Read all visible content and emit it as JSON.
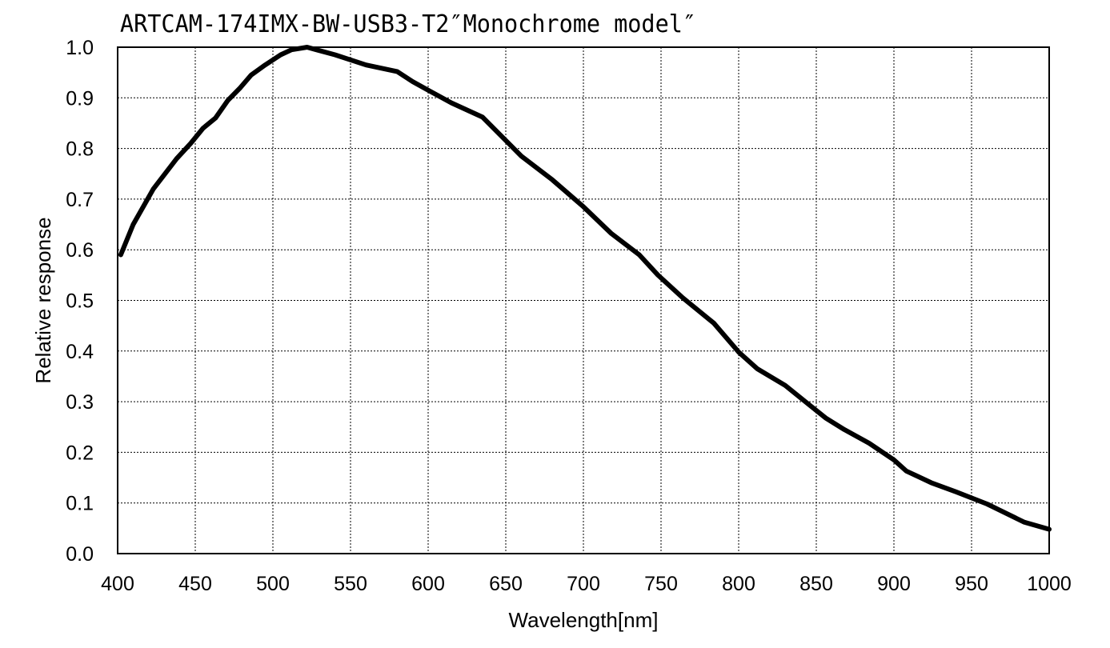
{
  "chart_data": {
    "type": "line",
    "title": "ARTCAM-174IMX-BW-USB3-T2″Monochrome model″",
    "xlabel": "Wavelength[nm]",
    "ylabel": "Relative response",
    "xlim": [
      400,
      1000
    ],
    "ylim": [
      0.0,
      1.0
    ],
    "xticks": [
      400,
      450,
      500,
      550,
      600,
      650,
      700,
      750,
      800,
      850,
      900,
      950,
      1000
    ],
    "yticks": [
      0.0,
      0.1,
      0.2,
      0.3,
      0.4,
      0.5,
      0.6,
      0.7,
      0.8,
      0.9,
      1.0
    ],
    "grid": true,
    "legend": "none",
    "series": [
      {
        "color": "#000000",
        "x": [
          402,
          410,
          423,
          438,
          447,
          455,
          463,
          471,
          479,
          486,
          495,
          505,
          512,
          522,
          528,
          540,
          560,
          580,
          590,
          600,
          615,
          635,
          660,
          680,
          700,
          718,
          736,
          748,
          764,
          784,
          800,
          812,
          830,
          845,
          856,
          868,
          884,
          900,
          908,
          924,
          940,
          960,
          984,
          1000
        ],
        "y": [
          0.59,
          0.65,
          0.72,
          0.78,
          0.81,
          0.84,
          0.86,
          0.895,
          0.92,
          0.945,
          0.965,
          0.985,
          0.995,
          1.0,
          0.995,
          0.985,
          0.965,
          0.952,
          0.932,
          0.915,
          0.89,
          0.862,
          0.785,
          0.738,
          0.685,
          0.632,
          0.59,
          0.55,
          0.505,
          0.455,
          0.398,
          0.365,
          0.332,
          0.295,
          0.268,
          0.245,
          0.218,
          0.185,
          0.163,
          0.14,
          0.122,
          0.098,
          0.062,
          0.048
        ]
      }
    ]
  }
}
